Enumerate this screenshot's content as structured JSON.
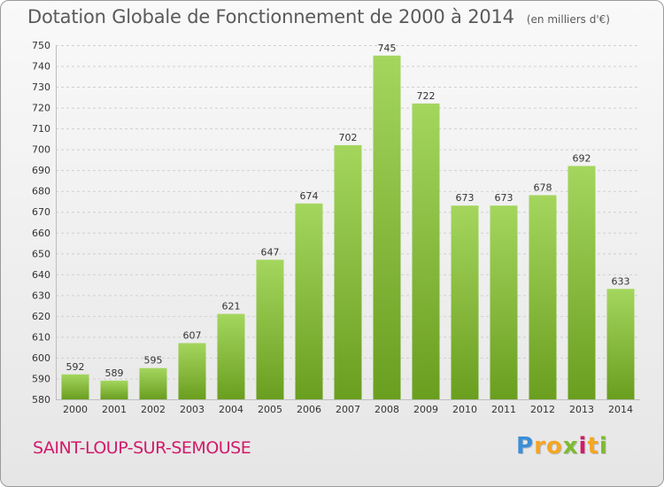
{
  "chart_data": {
    "type": "bar",
    "title": "Dotation Globale de Fonctionnement de 2000 à 2014",
    "subtitle": "(en milliers d'€)",
    "categories": [
      "2000",
      "2001",
      "2002",
      "2003",
      "2004",
      "2005",
      "2006",
      "2007",
      "2008",
      "2009",
      "2010",
      "2011",
      "2012",
      "2013",
      "2014"
    ],
    "values": [
      592,
      589,
      595,
      607,
      621,
      647,
      674,
      702,
      745,
      722,
      673,
      673,
      678,
      692,
      633
    ],
    "ylim": [
      580,
      750
    ],
    "yticks": [
      580,
      590,
      600,
      610,
      620,
      630,
      640,
      650,
      660,
      670,
      680,
      690,
      700,
      710,
      720,
      730,
      740,
      750
    ],
    "bar_color": "#8cc63f",
    "grid": true
  },
  "commune": "SAINT-LOUP-SUR-SEMOUSE",
  "brand": {
    "letters": [
      "P",
      "r",
      "o",
      "x",
      "i",
      "t",
      "i"
    ],
    "colors": [
      "#3a8fd8",
      "#f5a623",
      "#f5a623",
      "#7dbb2f",
      "#d21a6b",
      "#f5a623",
      "#7dbb2f"
    ]
  }
}
